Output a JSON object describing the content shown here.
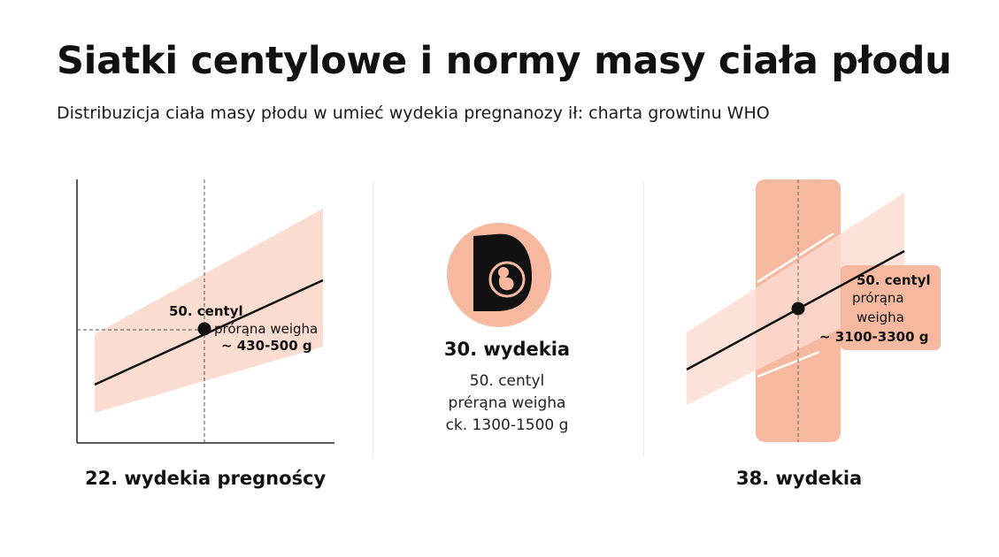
{
  "header": {
    "title": "Siatki centylowe i normy masy ciała płodu",
    "subtitle": "Distribuzicja  ciała masy płodu w umieć wydekia pregnanozy ił: charta growtinu WHO"
  },
  "panel_left": {
    "centile_label": "50. centyl",
    "weight_label": "prórąna weigha",
    "weight_value": "~ 430-500 g",
    "caption": "22. wydekia pregnoścy"
  },
  "panel_middle": {
    "icon": "pregnant-belly-fetus-icon",
    "week": "30. wydekia",
    "centile": "50. centyl",
    "weight_label": "prérąna weigha",
    "weight_value": "ck. 1300-1500 g"
  },
  "panel_right": {
    "centile_label": "50. centyl",
    "weight_label_1": "prórąna",
    "weight_label_2": "weigha",
    "weight_value": "~ 3100-3300 g",
    "caption": "38. wydekia"
  },
  "colors": {
    "accent": "#f6b9a0",
    "band": "#fbdcd0",
    "line": "#111111"
  }
}
